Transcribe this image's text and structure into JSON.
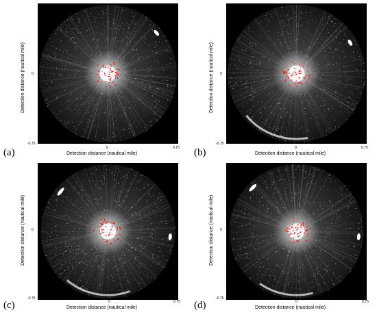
{
  "panels": [
    {
      "label": "(a)",
      "xlabel": "Detection distance (nautical mile)",
      "ylabel": "Detection distance (nautical mile)",
      "ticks": {
        "y_zero": "0",
        "y_min": "-0.75",
        "x_zero": "0",
        "x_max": "0.75"
      }
    },
    {
      "label": "(b)",
      "xlabel": "Detection distance (nautical mile)",
      "ylabel": "Detection distance (nautical mile)",
      "ticks": {
        "y_zero": "0",
        "y_min": "-0.75",
        "x_zero": "0",
        "x_max": "0.75"
      }
    },
    {
      "label": "(c)",
      "xlabel": "Detection distance (nautical mile)",
      "ylabel": "Detection distance (nautical mile)",
      "ticks": {
        "y_zero": "0",
        "y_min": "-0.75",
        "x_zero": "0",
        "x_max": "0.75"
      }
    },
    {
      "label": "(d)",
      "xlabel": "Detection distance (nautical mile)",
      "ylabel": "Detection distance (nautical mile)",
      "ticks": {
        "y_zero": "0",
        "y_min": "-0.75",
        "x_zero": "0",
        "x_max": "0.75"
      }
    }
  ],
  "colors": {
    "background": "#000000",
    "clutter": "#d8d8d8",
    "targets": "#ff0000"
  }
}
